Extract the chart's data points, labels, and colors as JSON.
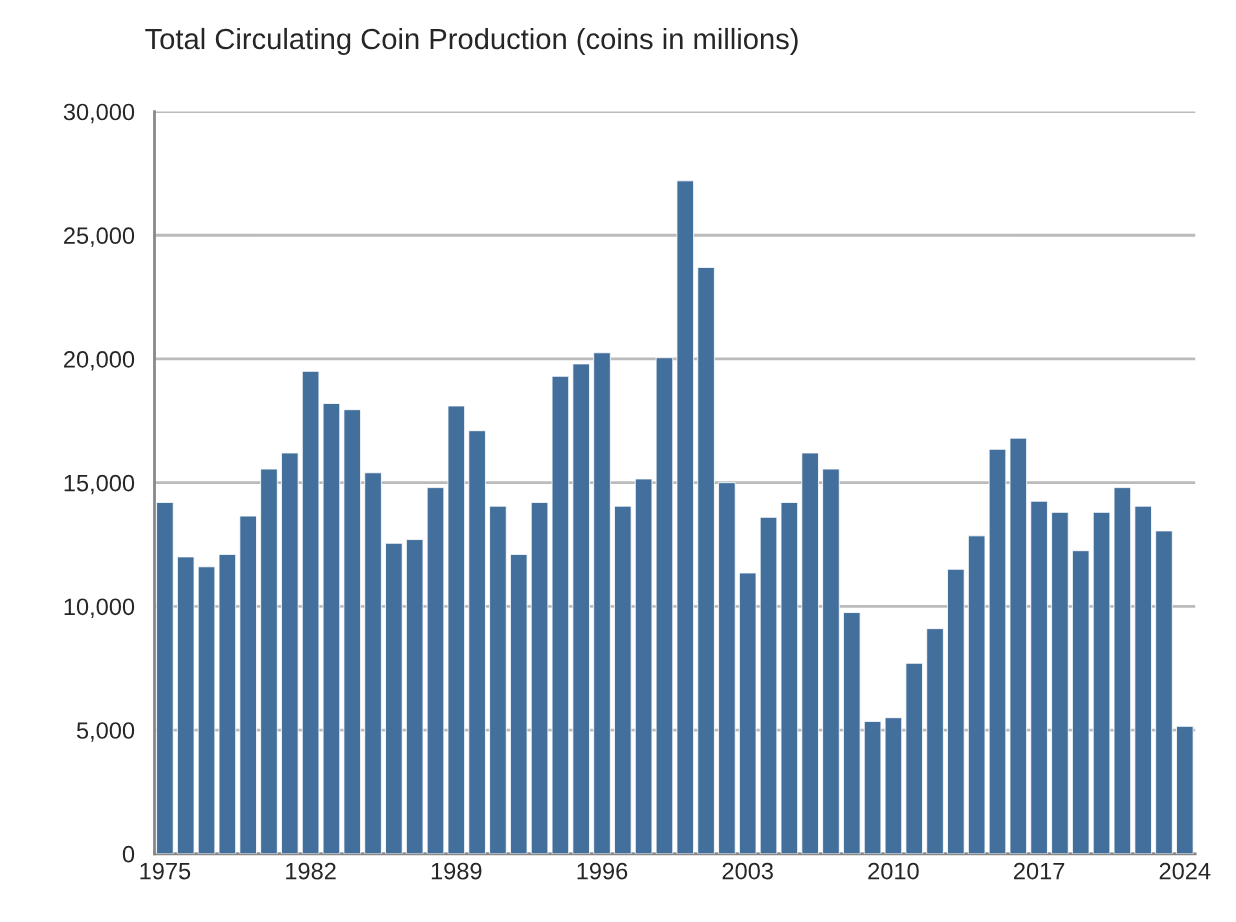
{
  "chart_data": {
    "type": "bar",
    "title": "Total Circulating Coin Production (coins in millions)",
    "categories": [
      "1975",
      null,
      null,
      null,
      null,
      null,
      null,
      "1982",
      null,
      null,
      null,
      null,
      null,
      null,
      "1989",
      null,
      null,
      null,
      null,
      null,
      null,
      "1996",
      null,
      null,
      null,
      null,
      null,
      null,
      "2003",
      null,
      null,
      null,
      null,
      null,
      null,
      "2010",
      null,
      null,
      null,
      null,
      null,
      null,
      "2017",
      null,
      null,
      null,
      null,
      null,
      null,
      "2024"
    ],
    "values": [
      14200,
      12000,
      11600,
      12100,
      13650,
      15550,
      16200,
      19500,
      18200,
      17950,
      15400,
      12550,
      12700,
      14800,
      18100,
      17100,
      14050,
      12100,
      14200,
      19300,
      19800,
      20250,
      14050,
      15150,
      20050,
      27200,
      23700,
      15000,
      11350,
      13600,
      14200,
      16200,
      15550,
      9750,
      5350,
      5500,
      7700,
      9100,
      11500,
      12850,
      16350,
      16800,
      14250,
      13800,
      12250,
      13800,
      14800,
      14050,
      13050,
      5150
    ],
    "color": "#426f9b",
    "ylim": [
      0,
      30000
    ],
    "yticks": [
      {
        "value": 0,
        "label": "0"
      },
      {
        "value": 5000,
        "label": "5,000"
      },
      {
        "value": 10000,
        "label": "10,000"
      },
      {
        "value": 15000,
        "label": "15,000"
      },
      {
        "value": 20000,
        "label": "20,000"
      },
      {
        "value": 25000,
        "label": "25,000"
      },
      {
        "value": 30000,
        "label": "30,000"
      }
    ],
    "grid": "y"
  }
}
